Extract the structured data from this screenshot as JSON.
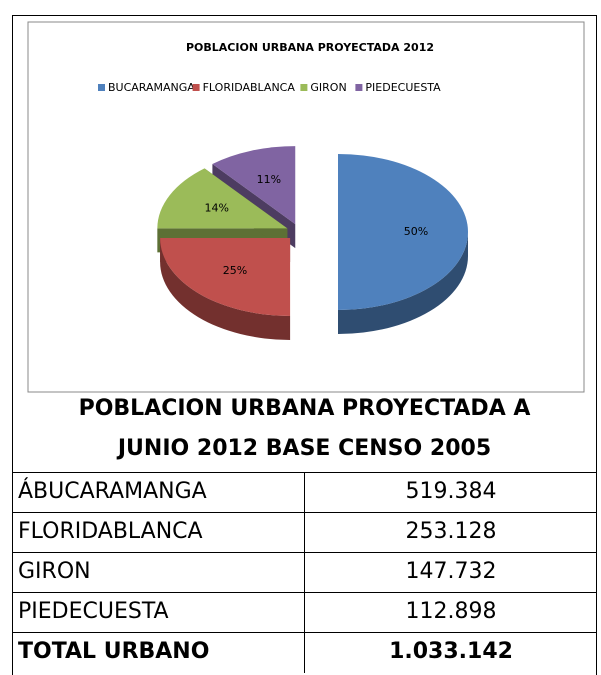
{
  "chart_data": {
    "type": "pie",
    "title": "POBLACION URBANA PROYECTADA 2012",
    "categories": [
      "BUCARAMANGA",
      "FLORIDABLANCA",
      "GIRON",
      "PIEDECUESTA"
    ],
    "values": [
      50,
      25,
      14,
      11
    ],
    "value_labels": [
      "50%",
      "25%",
      "14%",
      "11%"
    ],
    "colors": [
      "#4f81bd",
      "#c0504d",
      "#9bbb59",
      "#8064a2"
    ],
    "legend": "top"
  },
  "table": {
    "title": [
      "POBLACION URBANA PROYECTADA A",
      "JUNIO 2012 BASE CENSO 2005"
    ],
    "rows": [
      [
        "ÁBUCARAMANGA",
        "519.384"
      ],
      [
        "FLORIDABLANCA",
        "253.128"
      ],
      [
        "GIRON",
        "147.732"
      ],
      [
        "PIEDECUESTA",
        "112.898"
      ]
    ],
    "total": [
      "TOTAL URBANO",
      "1.033.142"
    ]
  }
}
